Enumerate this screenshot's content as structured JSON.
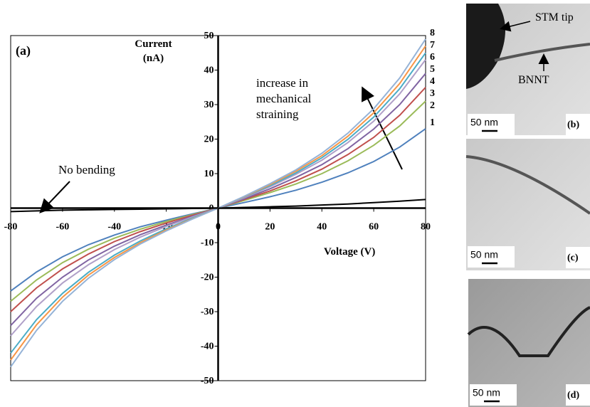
{
  "chart_data": {
    "type": "line",
    "panel_label": "(a)",
    "x_label": "Voltage (V)",
    "y_label": "Current (nA)",
    "annotations": [
      "increase in mechanical straining"
    ],
    "x": [
      -80,
      -70,
      -60,
      -50,
      -40,
      -30,
      -20,
      -10,
      0,
      10,
      20,
      30,
      40,
      50,
      60,
      70,
      80
    ],
    "xlim": [
      -80,
      80
    ],
    "xticks": [
      -80,
      -60,
      -40,
      -20,
      0,
      20,
      40,
      60,
      80
    ],
    "ylim": [
      -50,
      50
    ],
    "yticks": [
      -50,
      -40,
      -30,
      -20,
      -10,
      0,
      10,
      20,
      30,
      40,
      50
    ],
    "series": [
      {
        "name": "1",
        "color": "#4f81bd",
        "values": [
          -24,
          -18.5,
          -14.1,
          -10.6,
          -7.8,
          -5.4,
          -3.5,
          -1.7,
          0,
          1.6,
          3.3,
          5.2,
          7.5,
          10.2,
          13.5,
          17.7,
          23
        ]
      },
      {
        "name": "2",
        "color": "#9bbb59",
        "values": [
          -27,
          -20.8,
          -15.8,
          -11.9,
          -8.7,
          -6.1,
          -3.9,
          -1.9,
          0,
          2.2,
          4.5,
          7.0,
          10.0,
          13.7,
          18.2,
          23.8,
          31
        ]
      },
      {
        "name": "3",
        "color": "#c0504d",
        "values": [
          -30,
          -23.1,
          -17.6,
          -13.3,
          -9.7,
          -6.8,
          -4.3,
          -2.1,
          0,
          2.5,
          5.0,
          7.9,
          11.3,
          15.5,
          20.5,
          26.9,
          35
        ]
      },
      {
        "name": "4",
        "color": "#8064a2",
        "values": [
          -34,
          -26.1,
          -20.0,
          -15.0,
          -11.0,
          -7.7,
          -4.9,
          -2.4,
          0,
          2.7,
          5.6,
          8.9,
          12.6,
          17.2,
          22.9,
          30.0,
          39
        ]
      },
      {
        "name": "5",
        "color": "#b0a0c8",
        "values": [
          -37,
          -28.5,
          -21.7,
          -16.4,
          -12.0,
          -8.4,
          -5.3,
          -2.6,
          0,
          3.0,
          6.2,
          9.8,
          13.9,
          19.0,
          25.2,
          33.1,
          43
        ]
      },
      {
        "name": "6",
        "color": "#4bacc6",
        "values": [
          -42,
          -32.3,
          -24.7,
          -18.6,
          -13.6,
          -9.5,
          -6.0,
          -2.9,
          0,
          3.2,
          6.5,
          10.2,
          14.6,
          19.9,
          26.4,
          34.6,
          45
        ]
      },
      {
        "name": "7",
        "color": "#f79646",
        "values": [
          -44,
          -33.8,
          -25.8,
          -19.4,
          -14.3,
          -10.0,
          -6.3,
          -3.1,
          0,
          3.3,
          6.8,
          10.7,
          15.2,
          20.8,
          27.6,
          36.1,
          47
        ]
      },
      {
        "name": "8",
        "color": "#95b3d7",
        "values": [
          -46,
          -35.4,
          -27.0,
          -20.3,
          -14.9,
          -10.4,
          -6.6,
          -3.2,
          0,
          3.4,
          7.1,
          11.1,
          15.9,
          21.7,
          28.8,
          37.7,
          49
        ]
      },
      {
        "name": "No bending",
        "color": "#000000",
        "values": [
          -1.0,
          -0.8,
          -0.6,
          -0.5,
          -0.4,
          -0.3,
          -0.2,
          -0.1,
          0,
          0.2,
          0.4,
          0.6,
          0.9,
          1.2,
          1.6,
          2.0,
          2.5
        ]
      }
    ]
  },
  "panels": [
    {
      "label": "(b)",
      "scale": "50 nm",
      "notes": [
        "STM tip",
        "BNNT"
      ]
    },
    {
      "label": "(c)",
      "scale": "50 nm"
    },
    {
      "label": "(d)",
      "scale": "50 nm"
    }
  ]
}
